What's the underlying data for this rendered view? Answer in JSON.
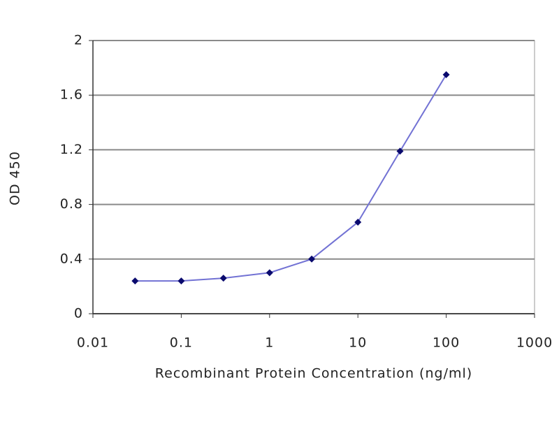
{
  "chart_data": {
    "type": "line",
    "x_label": "Recombinant Protein Concentration (ng/ml)",
    "y_label": "OD 450",
    "xscale": "log",
    "x": [
      0.03,
      0.1,
      0.3,
      1,
      3,
      10,
      30,
      100
    ],
    "series": [
      {
        "values": [
          0.24,
          0.24,
          0.26,
          0.3,
          0.4,
          0.67,
          1.19,
          1.75
        ],
        "color": "#7272d4",
        "marker_color": "#0a0a6e"
      }
    ],
    "xlim": [
      0.01,
      1000
    ],
    "xticks": [
      0.01,
      0.1,
      1,
      10,
      100,
      1000
    ],
    "ylim": [
      0,
      2
    ],
    "yticks": [
      0,
      0.4,
      0.8,
      1.2,
      1.6,
      2
    ],
    "grid": true
  }
}
